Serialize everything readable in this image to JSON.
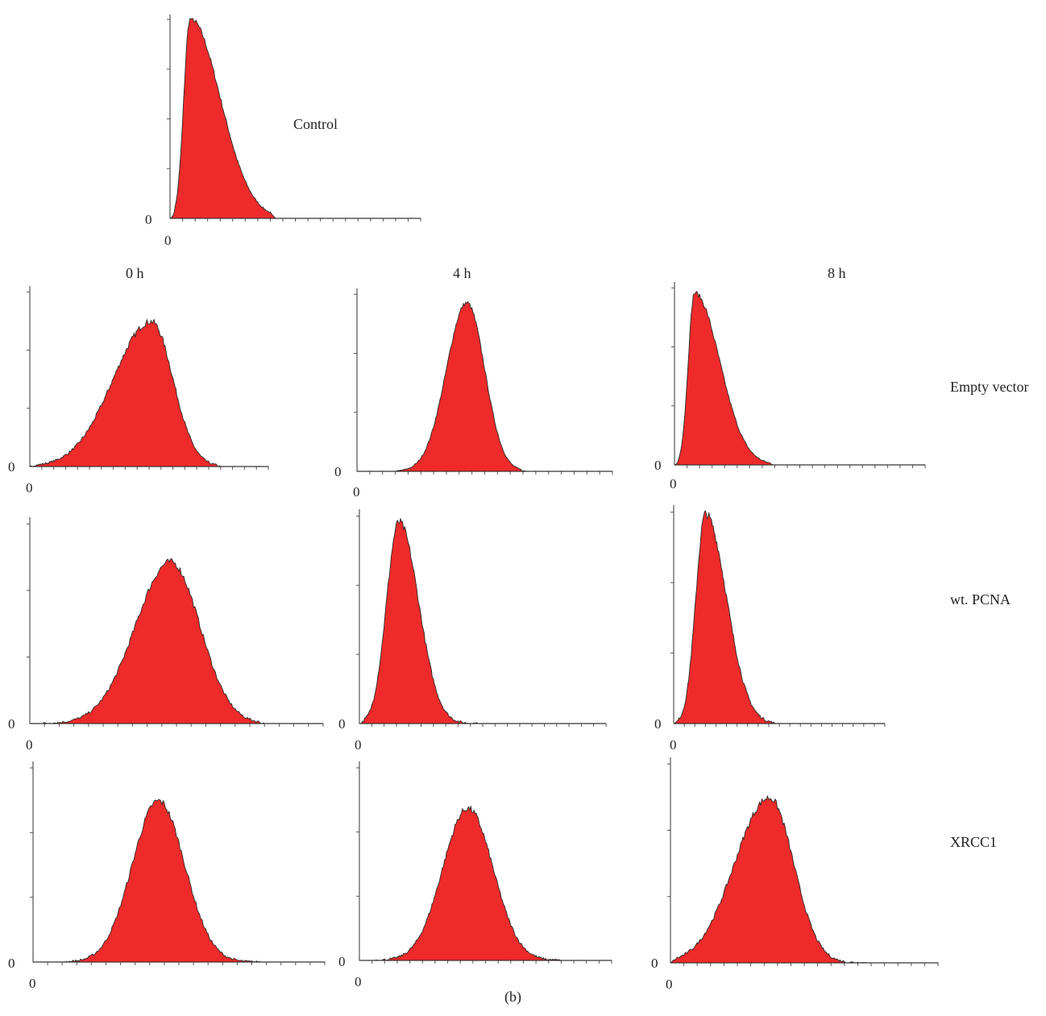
{
  "figure": {
    "panel_label": "(b)",
    "fill_color": "#ee2a2a",
    "outline_color": "#2b2b2b",
    "axis_color": "#555555"
  },
  "columns": [
    "0 h",
    "4 h",
    "8 h"
  ],
  "rows": [
    "Empty vector",
    "wt. PCNA",
    "XRCC1"
  ],
  "control_label": "Control",
  "chart_data": [
    {
      "type": "area",
      "id": "control",
      "x_min_label": "0",
      "y_min_label": "0",
      "xlim": [
        0,
        1
      ],
      "ylim": [
        0,
        1
      ],
      "curve": {
        "left": 0.0,
        "peak_x": 0.08,
        "peak": 1.0,
        "sigma_left": 0.025,
        "sigma_right": 0.12,
        "right": 0.42
      }
    },
    {
      "type": "area",
      "id": "empty-vector-0h",
      "x_min_label": "0",
      "y_min_label": "0",
      "xlim": [
        0,
        1
      ],
      "ylim": [
        0,
        1
      ],
      "curve": {
        "left": 0.0,
        "peak_x": 0.51,
        "peak": 0.82,
        "sigma_left": 0.16,
        "sigma_right": 0.09,
        "right": 0.8,
        "noise": 0.03
      }
    },
    {
      "type": "area",
      "id": "empty-vector-4h",
      "x_min_label": "0",
      "y_min_label": "0",
      "xlim": [
        0,
        1
      ],
      "ylim": [
        0,
        1
      ],
      "curve": {
        "left": 0.15,
        "peak_x": 0.43,
        "peak": 0.94,
        "sigma_left": 0.08,
        "sigma_right": 0.07,
        "right": 0.66,
        "noise": 0.02
      }
    },
    {
      "type": "area",
      "id": "empty-vector-8h",
      "x_min_label": "0",
      "y_min_label": "0",
      "xlim": [
        0,
        1
      ],
      "ylim": [
        0,
        1
      ],
      "curve": {
        "left": 0.0,
        "peak_x": 0.08,
        "peak": 0.96,
        "sigma_left": 0.025,
        "sigma_right": 0.1,
        "right": 0.4,
        "noise": 0.02
      }
    },
    {
      "type": "area",
      "id": "wt-pcna-0h",
      "x_min_label": "0",
      "y_min_label": "0",
      "xlim": [
        0,
        1
      ],
      "ylim": [
        0,
        1
      ],
      "curve": {
        "left": 0.04,
        "peak_x": 0.48,
        "peak": 0.8,
        "sigma_left": 0.12,
        "sigma_right": 0.1,
        "right": 0.8,
        "noise": 0.03
      }
    },
    {
      "type": "area",
      "id": "wt-pcna-4h",
      "x_min_label": "0",
      "y_min_label": "0",
      "xlim": [
        0,
        1
      ],
      "ylim": [
        0,
        1
      ],
      "curve": {
        "left": 0.0,
        "peak_x": 0.16,
        "peak": 0.96,
        "sigma_left": 0.05,
        "sigma_right": 0.08,
        "right": 0.48,
        "noise": 0.03
      }
    },
    {
      "type": "area",
      "id": "wt-pcna-8h",
      "x_min_label": "0",
      "y_min_label": "0",
      "xlim": [
        0,
        1
      ],
      "ylim": [
        0,
        1
      ],
      "curve": {
        "left": 0.0,
        "peak_x": 0.15,
        "peak": 0.98,
        "sigma_left": 0.045,
        "sigma_right": 0.1,
        "right": 0.48,
        "noise": 0.03
      }
    },
    {
      "type": "area",
      "id": "xrcc1-0h",
      "x_min_label": "0",
      "y_min_label": "0",
      "xlim": [
        0,
        1
      ],
      "ylim": [
        0,
        1
      ],
      "curve": {
        "left": 0.1,
        "peak_x": 0.43,
        "peak": 0.82,
        "sigma_left": 0.09,
        "sigma_right": 0.09,
        "right": 0.78,
        "noise": 0.03
      }
    },
    {
      "type": "area",
      "id": "xrcc1-4h",
      "x_min_label": "0",
      "y_min_label": "0",
      "xlim": [
        0,
        1
      ],
      "ylim": [
        0,
        1
      ],
      "curve": {
        "left": 0.05,
        "peak_x": 0.43,
        "peak": 0.78,
        "sigma_left": 0.1,
        "sigma_right": 0.1,
        "right": 0.8,
        "noise": 0.03
      }
    },
    {
      "type": "area",
      "id": "xrcc1-8h",
      "x_min_label": "0",
      "y_min_label": "0",
      "xlim": [
        0,
        1
      ],
      "ylim": [
        0,
        1
      ],
      "curve": {
        "left": 0.0,
        "peak_x": 0.37,
        "peak": 0.82,
        "sigma_left": 0.13,
        "sigma_right": 0.09,
        "right": 0.75,
        "noise": 0.03
      }
    }
  ]
}
